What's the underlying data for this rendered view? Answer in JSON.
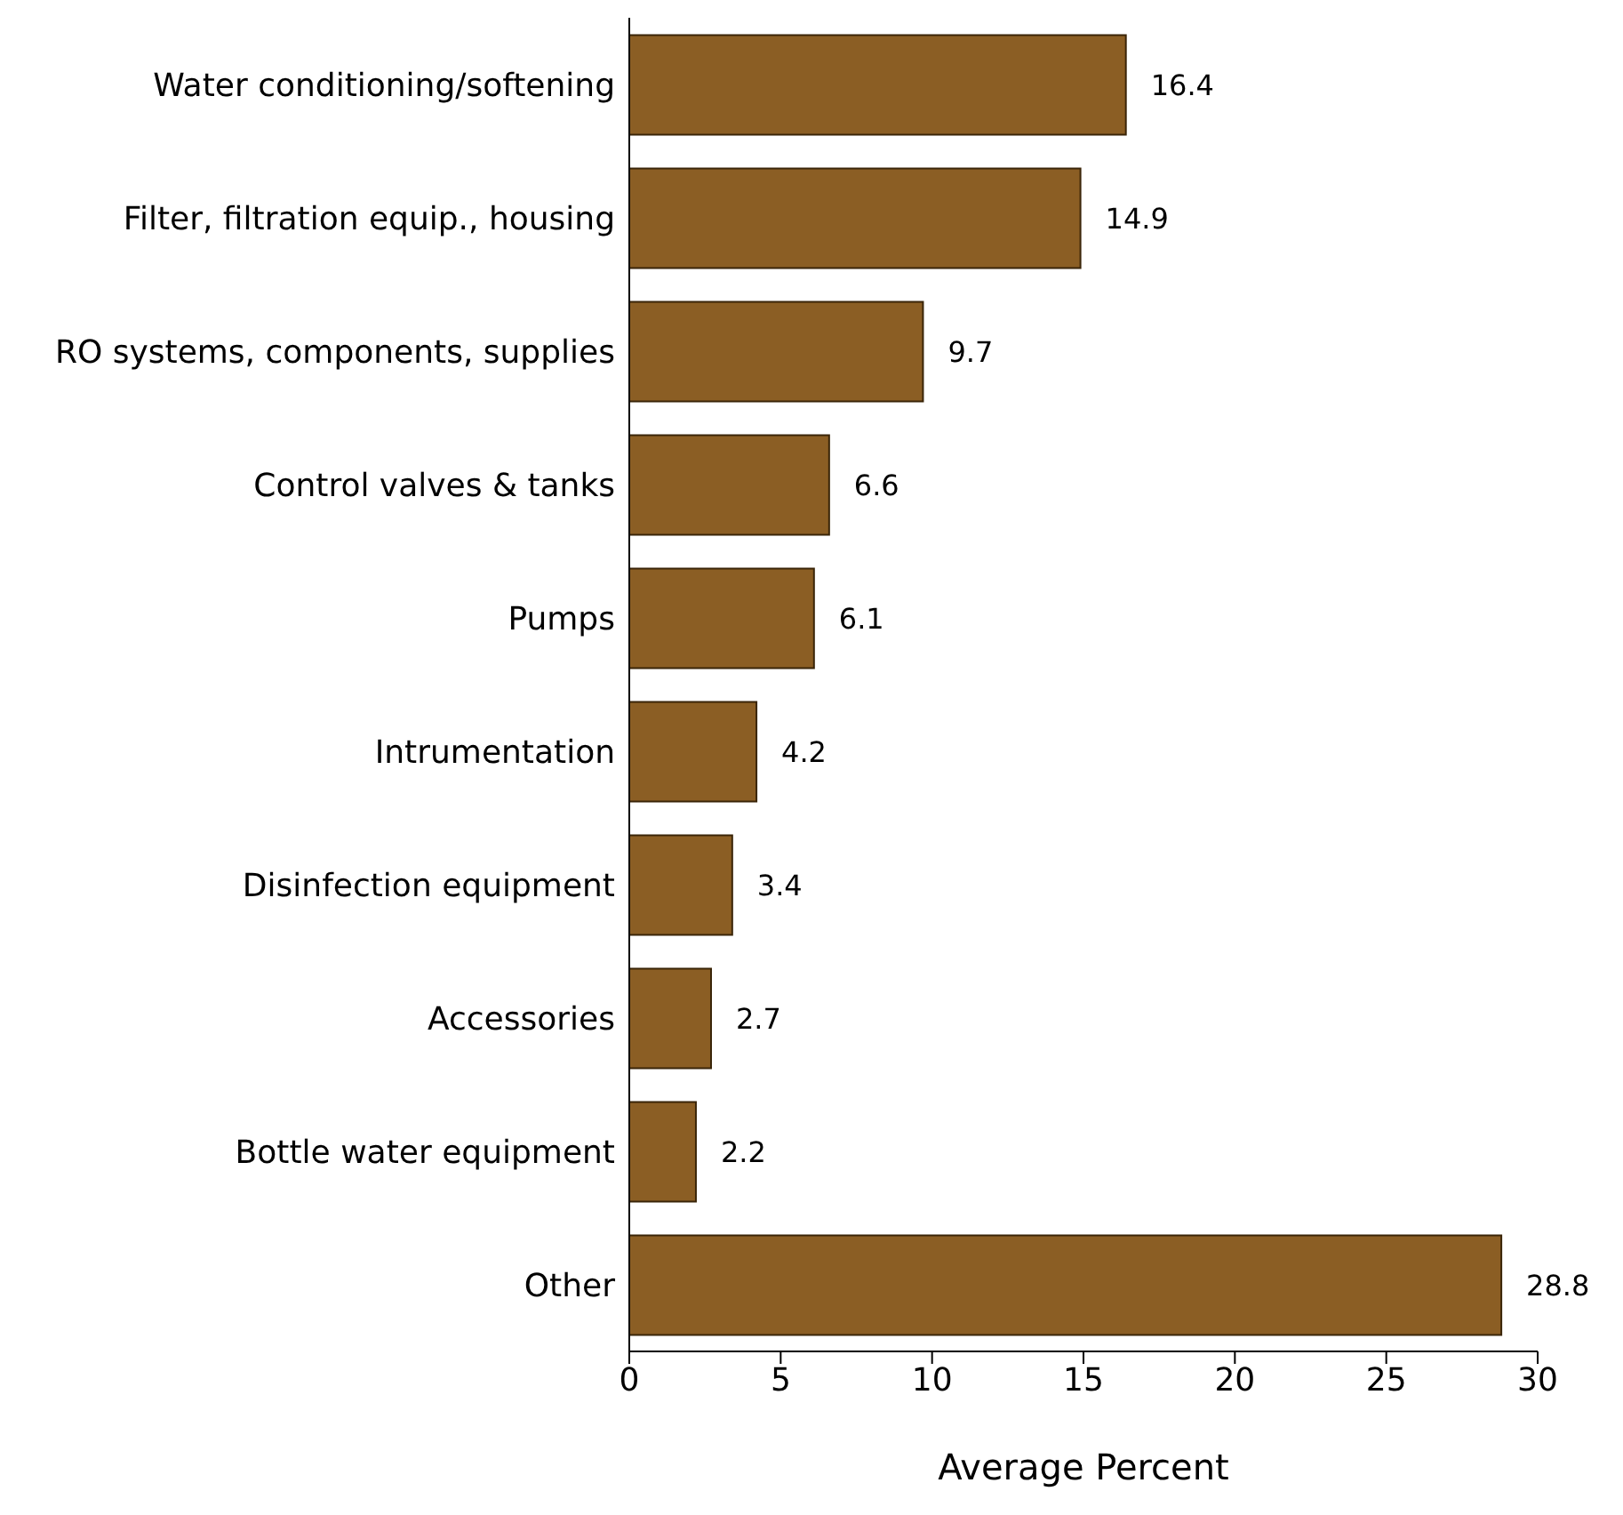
{
  "chart_data": {
    "type": "bar",
    "orientation": "horizontal",
    "xlabel": "Average Percent",
    "categories": [
      "Water conditioning/softening",
      "Filter, filtration equip., housing",
      "RO systems, components, supplies",
      "Control valves & tanks",
      "Pumps",
      "Intrumentation",
      "Disinfection equipment",
      "Accessories",
      "Bottle water equipment",
      "Other"
    ],
    "values": [
      16.4,
      14.9,
      9.7,
      6.6,
      6.1,
      4.2,
      3.4,
      2.7,
      2.2,
      28.8
    ],
    "color": "#8b5e24",
    "xlim": [
      0,
      30
    ],
    "xticks": [
      0,
      5,
      10,
      15,
      20,
      25,
      30
    ],
    "data_labels": true,
    "grid": false,
    "legend": false
  }
}
